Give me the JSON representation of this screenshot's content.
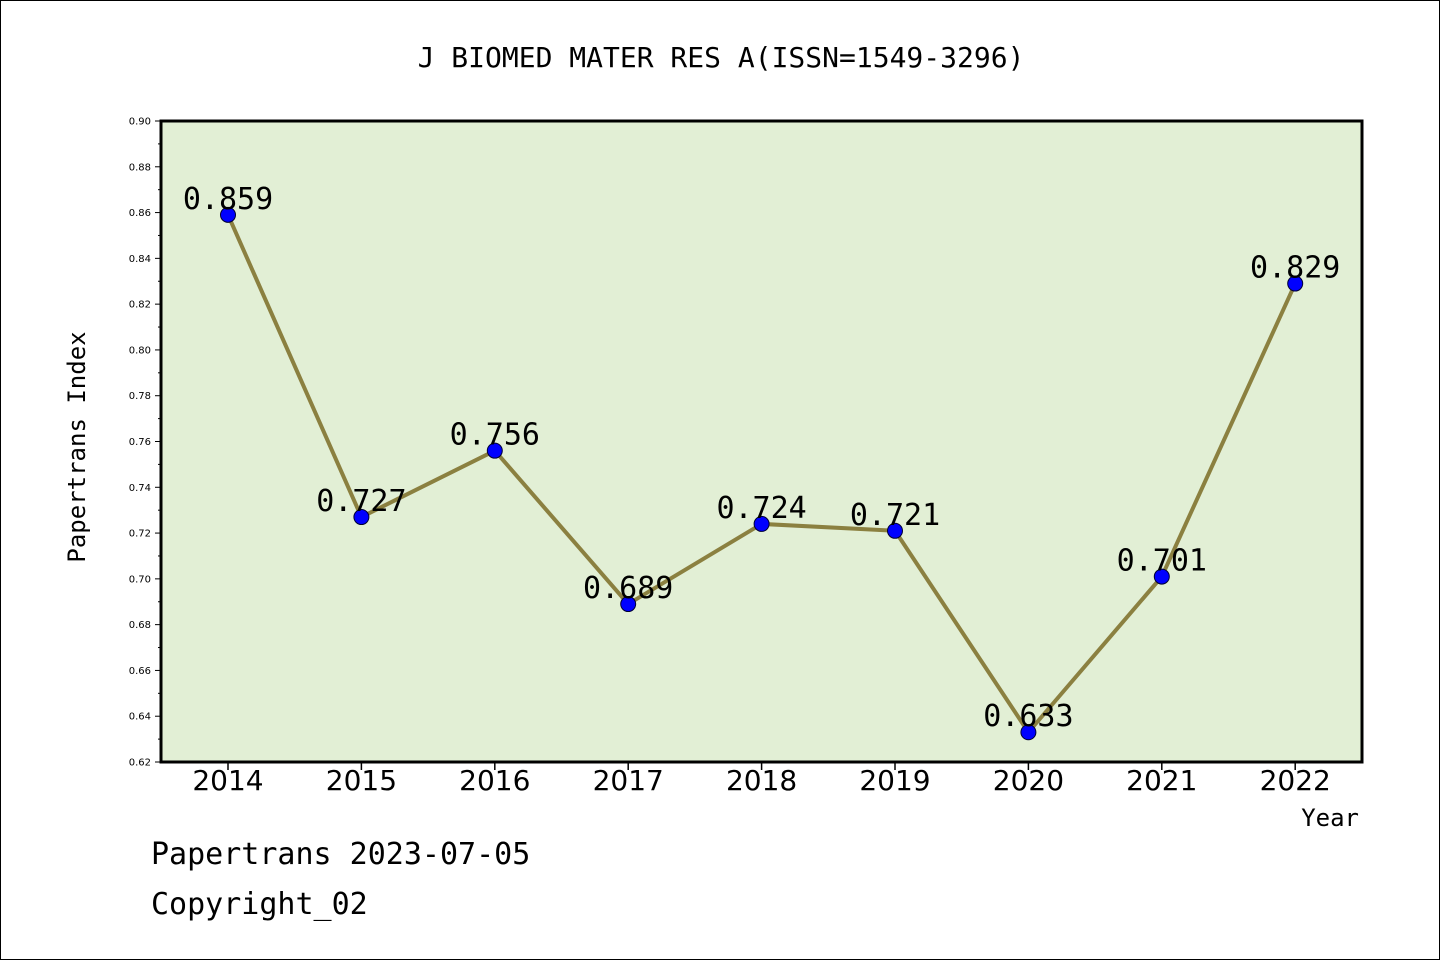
{
  "chart_data": {
    "type": "line",
    "title": "J BIOMED MATER RES A(ISSN=1549-3296)",
    "xlabel": "Year",
    "ylabel": "Papertrans Index",
    "categories": [
      "2014",
      "2015",
      "2016",
      "2017",
      "2018",
      "2019",
      "2020",
      "2021",
      "2022"
    ],
    "values": [
      0.859,
      0.727,
      0.756,
      0.689,
      0.724,
      0.721,
      0.633,
      0.701,
      0.829
    ],
    "value_labels": [
      "0.859",
      "0.727",
      "0.756",
      "0.689",
      "0.724",
      "0.721",
      "0.633",
      "0.701",
      "0.829"
    ],
    "ylim": [
      0.62,
      0.9
    ],
    "yticks": [
      "0.62",
      "0.64",
      "0.66",
      "0.68",
      "0.70",
      "0.72",
      "0.74",
      "0.76",
      "0.78",
      "0.80",
      "0.82",
      "0.84",
      "0.86",
      "0.88",
      "0.90"
    ],
    "grid": false,
    "line_color": "#8b8040",
    "marker_color": "#0000ff",
    "plot_background": "#e2efd5"
  },
  "footer": {
    "line1": "Papertrans 2023-07-05",
    "line2": "Copyright_02"
  }
}
